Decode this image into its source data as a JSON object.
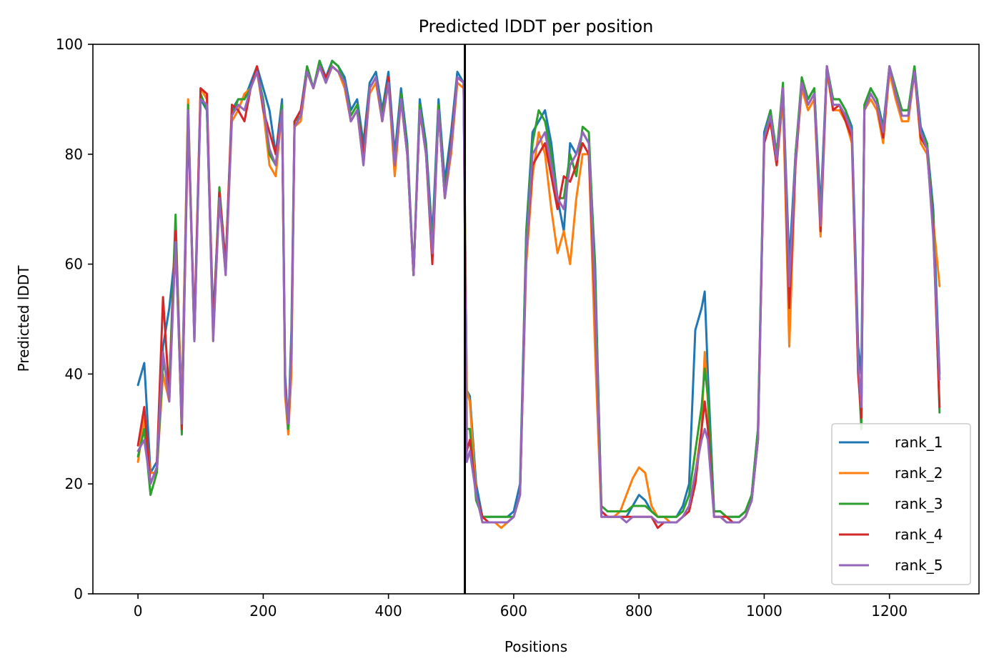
{
  "chart_data": {
    "type": "line",
    "title": "Predicted lDDT per position",
    "xlabel": "Positions",
    "ylabel": "Predicted lDDT",
    "xlim": [
      -72,
      1343
    ],
    "ylim": [
      0,
      100
    ],
    "xticks": [
      0,
      200,
      400,
      600,
      800,
      1000,
      1200
    ],
    "yticks": [
      0,
      20,
      40,
      60,
      80,
      100
    ],
    "grid": false,
    "legend_position": "lower-right",
    "vline": {
      "x": 522,
      "color": "#000000"
    },
    "x": [
      0,
      10,
      20,
      30,
      40,
      50,
      60,
      70,
      80,
      90,
      100,
      110,
      120,
      130,
      140,
      150,
      160,
      170,
      180,
      190,
      200,
      210,
      220,
      230,
      235,
      240,
      245,
      250,
      260,
      270,
      280,
      290,
      300,
      310,
      320,
      330,
      340,
      350,
      360,
      370,
      380,
      390,
      400,
      410,
      420,
      430,
      440,
      450,
      460,
      470,
      480,
      490,
      500,
      510,
      520,
      525,
      530,
      540,
      550,
      560,
      570,
      580,
      590,
      600,
      610,
      620,
      630,
      640,
      650,
      660,
      670,
      680,
      690,
      700,
      710,
      720,
      730,
      740,
      750,
      760,
      770,
      780,
      790,
      800,
      810,
      820,
      830,
      840,
      850,
      860,
      870,
      880,
      890,
      900,
      905,
      910,
      920,
      930,
      940,
      950,
      960,
      970,
      980,
      990,
      1000,
      1010,
      1020,
      1030,
      1040,
      1050,
      1060,
      1070,
      1080,
      1090,
      1100,
      1110,
      1120,
      1130,
      1140,
      1150,
      1155,
      1160,
      1170,
      1180,
      1190,
      1200,
      1210,
      1220,
      1230,
      1240,
      1250,
      1260,
      1270,
      1280
    ],
    "series": [
      {
        "name": "rank_1",
        "color": "#1f77b4",
        "values": [
          38,
          42,
          22,
          24,
          45,
          52,
          63,
          35,
          88,
          48,
          90,
          88,
          50,
          72,
          60,
          88,
          90,
          90,
          93,
          96,
          92,
          88,
          80,
          90,
          40,
          30,
          48,
          86,
          88,
          96,
          92,
          97,
          94,
          97,
          96,
          94,
          88,
          90,
          82,
          93,
          95,
          88,
          95,
          80,
          92,
          82,
          58,
          90,
          82,
          65,
          90,
          75,
          84,
          95,
          93,
          37,
          36,
          20,
          14,
          14,
          14,
          14,
          14,
          15,
          20,
          66,
          84,
          86,
          88,
          82,
          72,
          66,
          82,
          80,
          84,
          82,
          60,
          15,
          14,
          14,
          14,
          14,
          16,
          18,
          17,
          15,
          14,
          14,
          14,
          14,
          16,
          20,
          48,
          52,
          55,
          40,
          15,
          15,
          14,
          14,
          14,
          15,
          18,
          30,
          84,
          88,
          80,
          92,
          60,
          80,
          93,
          90,
          92,
          70,
          96,
          90,
          90,
          88,
          85,
          45,
          40,
          88,
          92,
          90,
          85,
          96,
          92,
          88,
          88,
          96,
          85,
          82,
          70,
          40
        ]
      },
      {
        "name": "rank_2",
        "color": "#ff7f0e",
        "values": [
          24,
          32,
          22,
          22,
          40,
          35,
          68,
          33,
          90,
          46,
          92,
          90,
          46,
          72,
          58,
          86,
          88,
          91,
          92,
          95,
          88,
          78,
          76,
          88,
          36,
          29,
          40,
          85,
          86,
          95,
          92,
          96,
          93,
          96,
          95,
          92,
          86,
          88,
          78,
          91,
          93,
          86,
          93,
          76,
          90,
          80,
          58,
          88,
          80,
          62,
          88,
          72,
          80,
          93,
          92,
          37,
          35,
          18,
          13,
          13,
          13,
          12,
          13,
          14,
          18,
          60,
          76,
          84,
          80,
          70,
          62,
          66,
          60,
          72,
          80,
          80,
          44,
          14,
          14,
          14,
          15,
          18,
          21,
          23,
          22,
          16,
          14,
          14,
          13,
          13,
          14,
          16,
          22,
          30,
          44,
          35,
          14,
          14,
          13,
          13,
          13,
          14,
          17,
          28,
          82,
          86,
          78,
          90,
          45,
          78,
          92,
          88,
          90,
          65,
          95,
          88,
          88,
          86,
          82,
          40,
          33,
          88,
          90,
          88,
          82,
          95,
          90,
          86,
          86,
          95,
          82,
          80,
          68,
          56
        ]
      },
      {
        "name": "rank_3",
        "color": "#2ca02c",
        "values": [
          25,
          30,
          18,
          22,
          42,
          38,
          69,
          29,
          89,
          46,
          91,
          88,
          48,
          74,
          60,
          87,
          90,
          90,
          92,
          95,
          90,
          80,
          78,
          89,
          38,
          30,
          45,
          86,
          87,
          96,
          92,
          97,
          93,
          97,
          96,
          93,
          87,
          89,
          80,
          92,
          94,
          87,
          94,
          78,
          91,
          81,
          58,
          89,
          81,
          63,
          89,
          73,
          82,
          94,
          93,
          30,
          30,
          17,
          14,
          14,
          14,
          14,
          14,
          14,
          18,
          65,
          82,
          88,
          86,
          80,
          72,
          72,
          80,
          76,
          85,
          84,
          58,
          16,
          15,
          15,
          15,
          15,
          16,
          16,
          16,
          15,
          14,
          14,
          14,
          14,
          15,
          18,
          26,
          34,
          41,
          36,
          15,
          15,
          14,
          14,
          14,
          15,
          18,
          30,
          83,
          88,
          80,
          93,
          55,
          80,
          94,
          90,
          92,
          68,
          96,
          90,
          90,
          88,
          84,
          42,
          30,
          89,
          92,
          90,
          84,
          96,
          92,
          88,
          88,
          96,
          84,
          82,
          68,
          33
        ]
      },
      {
        "name": "rank_4",
        "color": "#d62728",
        "values": [
          27,
          34,
          20,
          23,
          54,
          36,
          66,
          30,
          86,
          48,
          92,
          91,
          48,
          73,
          60,
          89,
          88,
          86,
          92,
          96,
          88,
          84,
          80,
          88,
          38,
          31,
          44,
          86,
          88,
          95,
          92,
          96,
          94,
          96,
          95,
          93,
          86,
          88,
          80,
          92,
          94,
          86,
          94,
          78,
          90,
          80,
          58,
          88,
          80,
          60,
          88,
          72,
          82,
          94,
          93,
          26,
          28,
          18,
          14,
          13,
          13,
          13,
          13,
          14,
          18,
          62,
          78,
          80,
          82,
          76,
          70,
          76,
          75,
          78,
          82,
          80,
          52,
          15,
          14,
          14,
          14,
          14,
          14,
          14,
          14,
          14,
          12,
          13,
          13,
          13,
          14,
          15,
          20,
          30,
          35,
          30,
          14,
          14,
          14,
          13,
          13,
          14,
          17,
          28,
          82,
          86,
          78,
          92,
          52,
          78,
          93,
          89,
          91,
          66,
          96,
          88,
          89,
          86,
          83,
          40,
          32,
          88,
          91,
          89,
          83,
          96,
          91,
          87,
          87,
          95,
          83,
          81,
          66,
          34
        ]
      },
      {
        "name": "rank_5",
        "color": "#9467bd",
        "values": [
          26,
          28,
          20,
          23,
          44,
          35,
          64,
          31,
          88,
          46,
          90,
          89,
          46,
          72,
          58,
          87,
          89,
          88,
          92,
          95,
          89,
          81,
          78,
          88,
          37,
          31,
          44,
          85,
          87,
          95,
          92,
          96,
          93,
          96,
          95,
          93,
          86,
          88,
          78,
          92,
          94,
          86,
          93,
          78,
          90,
          80,
          58,
          88,
          80,
          62,
          88,
          72,
          81,
          94,
          93,
          24,
          26,
          18,
          13,
          13,
          13,
          13,
          13,
          14,
          18,
          62,
          80,
          82,
          84,
          78,
          72,
          70,
          78,
          80,
          84,
          82,
          54,
          14,
          14,
          14,
          14,
          13,
          14,
          14,
          14,
          14,
          13,
          13,
          13,
          13,
          14,
          16,
          22,
          28,
          30,
          28,
          14,
          14,
          13,
          13,
          13,
          14,
          17,
          28,
          83,
          87,
          79,
          92,
          56,
          79,
          93,
          89,
          91,
          67,
          96,
          89,
          89,
          87,
          84,
          42,
          34,
          88,
          91,
          89,
          84,
          96,
          91,
          87,
          87,
          95,
          84,
          81,
          65,
          39
        ]
      }
    ]
  }
}
